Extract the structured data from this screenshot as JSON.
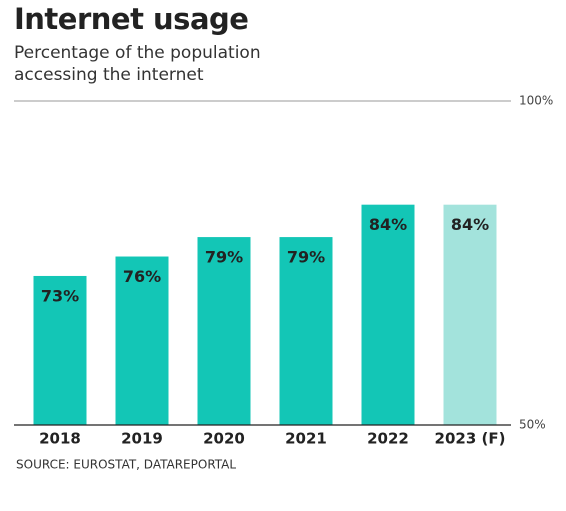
{
  "chart_data": {
    "type": "bar",
    "title": "Internet usage",
    "subtitle": "Percentage of the population accessing the internet",
    "source": "SOURCE: EUROSTAT, DATAREPORTAL",
    "categories": [
      "2018",
      "2019",
      "2020",
      "2021",
      "2022",
      "2023 (F)"
    ],
    "values": [
      73,
      76,
      79,
      79,
      84,
      84
    ],
    "value_labels": [
      "73%",
      "76%",
      "79%",
      "79%",
      "84%",
      "84%"
    ],
    "colors": [
      "#13c6b6",
      "#13c6b6",
      "#13c6b6",
      "#13c6b6",
      "#13c6b6",
      "#a3e3dc"
    ],
    "ylim": [
      50,
      100
    ],
    "yticks": [
      {
        "value": 50,
        "label": "50%"
      },
      {
        "value": 100,
        "label": "100%"
      }
    ],
    "grid": true
  }
}
